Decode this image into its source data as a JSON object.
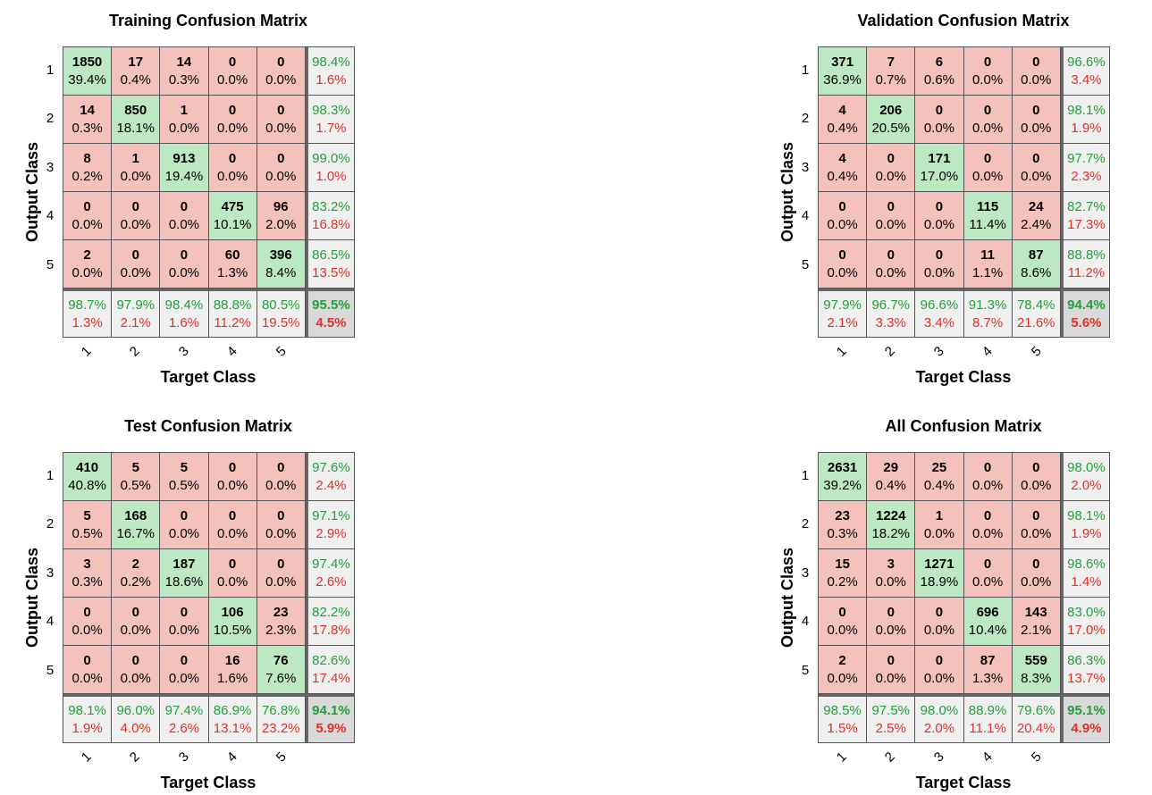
{
  "chart_data": [
    {
      "type": "table",
      "title": "Training Confusion Matrix",
      "xlabel": "Target Class",
      "ylabel": "Output Class",
      "classes": [
        "1",
        "2",
        "3",
        "4",
        "5"
      ],
      "cells": [
        [
          {
            "count": "1850",
            "pct": "39.4%"
          },
          {
            "count": "17",
            "pct": "0.4%"
          },
          {
            "count": "14",
            "pct": "0.3%"
          },
          {
            "count": "0",
            "pct": "0.0%"
          },
          {
            "count": "0",
            "pct": "0.0%"
          }
        ],
        [
          {
            "count": "14",
            "pct": "0.3%"
          },
          {
            "count": "850",
            "pct": "18.1%"
          },
          {
            "count": "1",
            "pct": "0.0%"
          },
          {
            "count": "0",
            "pct": "0.0%"
          },
          {
            "count": "0",
            "pct": "0.0%"
          }
        ],
        [
          {
            "count": "8",
            "pct": "0.2%"
          },
          {
            "count": "1",
            "pct": "0.0%"
          },
          {
            "count": "913",
            "pct": "19.4%"
          },
          {
            "count": "0",
            "pct": "0.0%"
          },
          {
            "count": "0",
            "pct": "0.0%"
          }
        ],
        [
          {
            "count": "0",
            "pct": "0.0%"
          },
          {
            "count": "0",
            "pct": "0.0%"
          },
          {
            "count": "0",
            "pct": "0.0%"
          },
          {
            "count": "475",
            "pct": "10.1%"
          },
          {
            "count": "96",
            "pct": "2.0%"
          }
        ],
        [
          {
            "count": "2",
            "pct": "0.0%"
          },
          {
            "count": "0",
            "pct": "0.0%"
          },
          {
            "count": "0",
            "pct": "0.0%"
          },
          {
            "count": "60",
            "pct": "1.3%"
          },
          {
            "count": "396",
            "pct": "8.4%"
          }
        ]
      ],
      "row_summary": [
        {
          "correct": "98.4%",
          "error": "1.6%"
        },
        {
          "correct": "98.3%",
          "error": "1.7%"
        },
        {
          "correct": "99.0%",
          "error": "1.0%"
        },
        {
          "correct": "83.2%",
          "error": "16.8%"
        },
        {
          "correct": "86.5%",
          "error": "13.5%"
        }
      ],
      "col_summary": [
        {
          "correct": "98.7%",
          "error": "1.3%"
        },
        {
          "correct": "97.9%",
          "error": "2.1%"
        },
        {
          "correct": "98.4%",
          "error": "1.6%"
        },
        {
          "correct": "88.8%",
          "error": "11.2%"
        },
        {
          "correct": "80.5%",
          "error": "19.5%"
        }
      ],
      "overall": {
        "correct": "95.5%",
        "error": "4.5%"
      }
    },
    {
      "type": "table",
      "title": "Validation Confusion Matrix",
      "xlabel": "Target Class",
      "ylabel": "Output Class",
      "classes": [
        "1",
        "2",
        "3",
        "4",
        "5"
      ],
      "cells": [
        [
          {
            "count": "371",
            "pct": "36.9%"
          },
          {
            "count": "7",
            "pct": "0.7%"
          },
          {
            "count": "6",
            "pct": "0.6%"
          },
          {
            "count": "0",
            "pct": "0.0%"
          },
          {
            "count": "0",
            "pct": "0.0%"
          }
        ],
        [
          {
            "count": "4",
            "pct": "0.4%"
          },
          {
            "count": "206",
            "pct": "20.5%"
          },
          {
            "count": "0",
            "pct": "0.0%"
          },
          {
            "count": "0",
            "pct": "0.0%"
          },
          {
            "count": "0",
            "pct": "0.0%"
          }
        ],
        [
          {
            "count": "4",
            "pct": "0.4%"
          },
          {
            "count": "0",
            "pct": "0.0%"
          },
          {
            "count": "171",
            "pct": "17.0%"
          },
          {
            "count": "0",
            "pct": "0.0%"
          },
          {
            "count": "0",
            "pct": "0.0%"
          }
        ],
        [
          {
            "count": "0",
            "pct": "0.0%"
          },
          {
            "count": "0",
            "pct": "0.0%"
          },
          {
            "count": "0",
            "pct": "0.0%"
          },
          {
            "count": "115",
            "pct": "11.4%"
          },
          {
            "count": "24",
            "pct": "2.4%"
          }
        ],
        [
          {
            "count": "0",
            "pct": "0.0%"
          },
          {
            "count": "0",
            "pct": "0.0%"
          },
          {
            "count": "0",
            "pct": "0.0%"
          },
          {
            "count": "11",
            "pct": "1.1%"
          },
          {
            "count": "87",
            "pct": "8.6%"
          }
        ]
      ],
      "row_summary": [
        {
          "correct": "96.6%",
          "error": "3.4%"
        },
        {
          "correct": "98.1%",
          "error": "1.9%"
        },
        {
          "correct": "97.7%",
          "error": "2.3%"
        },
        {
          "correct": "82.7%",
          "error": "17.3%"
        },
        {
          "correct": "88.8%",
          "error": "11.2%"
        }
      ],
      "col_summary": [
        {
          "correct": "97.9%",
          "error": "2.1%"
        },
        {
          "correct": "96.7%",
          "error": "3.3%"
        },
        {
          "correct": "96.6%",
          "error": "3.4%"
        },
        {
          "correct": "91.3%",
          "error": "8.7%"
        },
        {
          "correct": "78.4%",
          "error": "21.6%"
        }
      ],
      "overall": {
        "correct": "94.4%",
        "error": "5.6%"
      }
    },
    {
      "type": "table",
      "title": "Test Confusion Matrix",
      "xlabel": "Target Class",
      "ylabel": "Output Class",
      "classes": [
        "1",
        "2",
        "3",
        "4",
        "5"
      ],
      "cells": [
        [
          {
            "count": "410",
            "pct": "40.8%"
          },
          {
            "count": "5",
            "pct": "0.5%"
          },
          {
            "count": "5",
            "pct": "0.5%"
          },
          {
            "count": "0",
            "pct": "0.0%"
          },
          {
            "count": "0",
            "pct": "0.0%"
          }
        ],
        [
          {
            "count": "5",
            "pct": "0.5%"
          },
          {
            "count": "168",
            "pct": "16.7%"
          },
          {
            "count": "0",
            "pct": "0.0%"
          },
          {
            "count": "0",
            "pct": "0.0%"
          },
          {
            "count": "0",
            "pct": "0.0%"
          }
        ],
        [
          {
            "count": "3",
            "pct": "0.3%"
          },
          {
            "count": "2",
            "pct": "0.2%"
          },
          {
            "count": "187",
            "pct": "18.6%"
          },
          {
            "count": "0",
            "pct": "0.0%"
          },
          {
            "count": "0",
            "pct": "0.0%"
          }
        ],
        [
          {
            "count": "0",
            "pct": "0.0%"
          },
          {
            "count": "0",
            "pct": "0.0%"
          },
          {
            "count": "0",
            "pct": "0.0%"
          },
          {
            "count": "106",
            "pct": "10.5%"
          },
          {
            "count": "23",
            "pct": "2.3%"
          }
        ],
        [
          {
            "count": "0",
            "pct": "0.0%"
          },
          {
            "count": "0",
            "pct": "0.0%"
          },
          {
            "count": "0",
            "pct": "0.0%"
          },
          {
            "count": "16",
            "pct": "1.6%"
          },
          {
            "count": "76",
            "pct": "7.6%"
          }
        ]
      ],
      "row_summary": [
        {
          "correct": "97.6%",
          "error": "2.4%"
        },
        {
          "correct": "97.1%",
          "error": "2.9%"
        },
        {
          "correct": "97.4%",
          "error": "2.6%"
        },
        {
          "correct": "82.2%",
          "error": "17.8%"
        },
        {
          "correct": "82.6%",
          "error": "17.4%"
        }
      ],
      "col_summary": [
        {
          "correct": "98.1%",
          "error": "1.9%"
        },
        {
          "correct": "96.0%",
          "error": "4.0%"
        },
        {
          "correct": "97.4%",
          "error": "2.6%"
        },
        {
          "correct": "86.9%",
          "error": "13.1%"
        },
        {
          "correct": "76.8%",
          "error": "23.2%"
        }
      ],
      "overall": {
        "correct": "94.1%",
        "error": "5.9%"
      }
    },
    {
      "type": "table",
      "title": "All Confusion Matrix",
      "xlabel": "Target Class",
      "ylabel": "Output Class",
      "classes": [
        "1",
        "2",
        "3",
        "4",
        "5"
      ],
      "cells": [
        [
          {
            "count": "2631",
            "pct": "39.2%"
          },
          {
            "count": "29",
            "pct": "0.4%"
          },
          {
            "count": "25",
            "pct": "0.4%"
          },
          {
            "count": "0",
            "pct": "0.0%"
          },
          {
            "count": "0",
            "pct": "0.0%"
          }
        ],
        [
          {
            "count": "23",
            "pct": "0.3%"
          },
          {
            "count": "1224",
            "pct": "18.2%"
          },
          {
            "count": "1",
            "pct": "0.0%"
          },
          {
            "count": "0",
            "pct": "0.0%"
          },
          {
            "count": "0",
            "pct": "0.0%"
          }
        ],
        [
          {
            "count": "15",
            "pct": "0.2%"
          },
          {
            "count": "3",
            "pct": "0.0%"
          },
          {
            "count": "1271",
            "pct": "18.9%"
          },
          {
            "count": "0",
            "pct": "0.0%"
          },
          {
            "count": "0",
            "pct": "0.0%"
          }
        ],
        [
          {
            "count": "0",
            "pct": "0.0%"
          },
          {
            "count": "0",
            "pct": "0.0%"
          },
          {
            "count": "0",
            "pct": "0.0%"
          },
          {
            "count": "696",
            "pct": "10.4%"
          },
          {
            "count": "143",
            "pct": "2.1%"
          }
        ],
        [
          {
            "count": "2",
            "pct": "0.0%"
          },
          {
            "count": "0",
            "pct": "0.0%"
          },
          {
            "count": "0",
            "pct": "0.0%"
          },
          {
            "count": "87",
            "pct": "1.3%"
          },
          {
            "count": "559",
            "pct": "8.3%"
          }
        ]
      ],
      "row_summary": [
        {
          "correct": "98.0%",
          "error": "2.0%"
        },
        {
          "correct": "98.1%",
          "error": "1.9%"
        },
        {
          "correct": "98.6%",
          "error": "1.4%"
        },
        {
          "correct": "83.0%",
          "error": "17.0%"
        },
        {
          "correct": "86.3%",
          "error": "13.7%"
        }
      ],
      "col_summary": [
        {
          "correct": "98.5%",
          "error": "1.5%"
        },
        {
          "correct": "97.5%",
          "error": "2.5%"
        },
        {
          "correct": "98.0%",
          "error": "2.0%"
        },
        {
          "correct": "88.9%",
          "error": "11.1%"
        },
        {
          "correct": "79.6%",
          "error": "20.4%"
        }
      ],
      "overall": {
        "correct": "95.1%",
        "error": "4.9%"
      }
    }
  ],
  "colors": {
    "diagonal": "#bde8c4",
    "off_diagonal": "#f5c1bc",
    "summary": "#f0f0f0",
    "overall": "#d9d9d9",
    "correct_text": "#21a038",
    "error_text": "#e03028"
  }
}
